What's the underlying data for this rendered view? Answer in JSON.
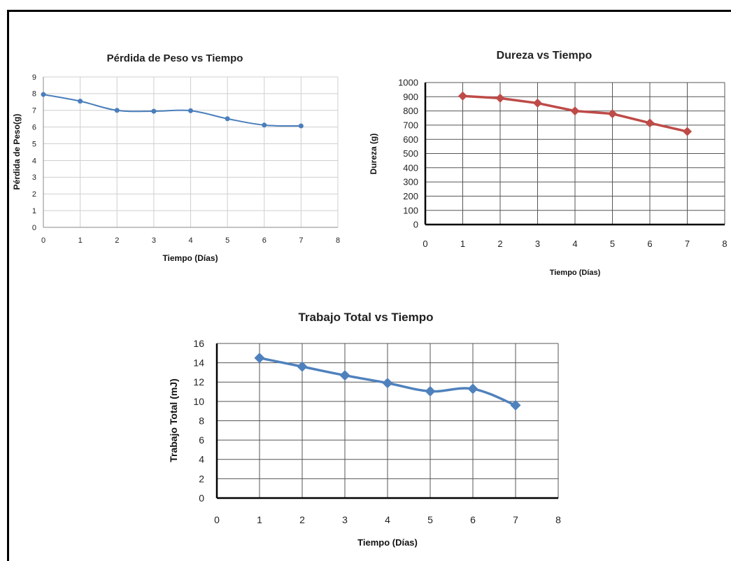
{
  "chart_data": [
    {
      "id": "peso",
      "type": "line",
      "title": "Pérdida de Peso vs Tiempo",
      "xlabel": "Tiempo (Días)",
      "ylabel": "Pérdida de Peso(g)",
      "xlim": [
        0,
        8
      ],
      "ylim": [
        0,
        9
      ],
      "xticks": [
        0,
        1,
        2,
        3,
        4,
        5,
        6,
        7,
        8
      ],
      "yticks": [
        0,
        1,
        2,
        3,
        4,
        5,
        6,
        7,
        8,
        9
      ],
      "grid": true,
      "color": "#4a7ebb",
      "marker": "circle",
      "x": [
        0,
        1,
        2,
        3,
        4,
        5,
        6,
        7
      ],
      "y": [
        7.95,
        7.55,
        7.0,
        6.95,
        6.98,
        6.5,
        6.12,
        6.07
      ]
    },
    {
      "id": "dureza",
      "type": "line",
      "title": "Dureza vs Tiempo",
      "xlabel": "Tiempo (Días)",
      "ylabel": "Dureza (g)",
      "xlim": [
        0,
        8
      ],
      "ylim": [
        0,
        1000
      ],
      "xticks": [
        0,
        1,
        2,
        3,
        4,
        5,
        6,
        7,
        8
      ],
      "yticks": [
        0,
        100,
        200,
        300,
        400,
        500,
        600,
        700,
        800,
        900,
        1000
      ],
      "grid": true,
      "color": "#be4b48",
      "marker": "diamond",
      "x": [
        1,
        2,
        3,
        4,
        5,
        6,
        7
      ],
      "y": [
        905,
        890,
        855,
        800,
        780,
        715,
        655
      ]
    },
    {
      "id": "trabajo",
      "type": "line",
      "title": "Trabajo Total vs Tiempo",
      "xlabel": "Tiempo (Días)",
      "ylabel": "Trabajo Total (mJ)",
      "xlim": [
        0,
        8
      ],
      "ylim": [
        0,
        16
      ],
      "xticks": [
        0,
        1,
        2,
        3,
        4,
        5,
        6,
        7,
        8
      ],
      "yticks": [
        0,
        2,
        4,
        6,
        8,
        10,
        12,
        14,
        16
      ],
      "grid": true,
      "color": "#4f81bd",
      "marker": "diamond",
      "x": [
        1,
        2,
        3,
        4,
        5,
        6,
        7
      ],
      "y": [
        14.5,
        13.6,
        12.7,
        11.9,
        11.05,
        11.3,
        9.6
      ]
    }
  ]
}
